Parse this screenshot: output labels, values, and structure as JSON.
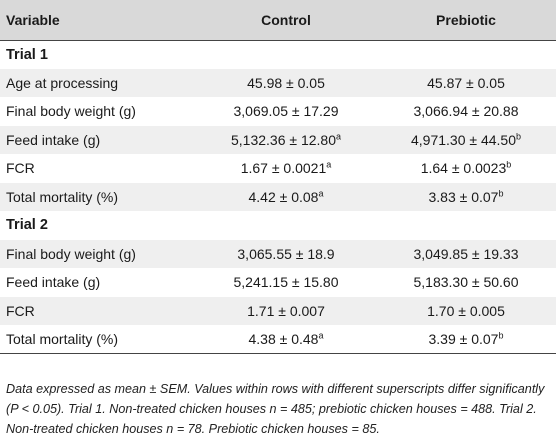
{
  "table": {
    "headers": [
      "Variable",
      "Control",
      "Prebiotic"
    ],
    "sections": [
      {
        "title": "Trial 1",
        "rows": [
          {
            "label": "Age at processing",
            "control": "45.98 ± 0.05",
            "control_sup": "",
            "prebiotic": "45.87 ± 0.05",
            "prebiotic_sup": ""
          },
          {
            "label": "Final body weight (g)",
            "control": "3,069.05 ± 17.29",
            "control_sup": "",
            "prebiotic": "3,066.94 ± 20.88",
            "prebiotic_sup": ""
          },
          {
            "label": "Feed intake (g)",
            "control": "5,132.36 ± 12.80",
            "control_sup": "a",
            "prebiotic": "4,971.30 ± 44.50",
            "prebiotic_sup": "b"
          },
          {
            "label": "FCR",
            "control": "1.67 ± 0.0021",
            "control_sup": "a",
            "prebiotic": "1.64 ± 0.0023",
            "prebiotic_sup": "b"
          },
          {
            "label": "Total mortality (%)",
            "control": "4.42 ± 0.08",
            "control_sup": "a",
            "prebiotic": "3.83 ± 0.07",
            "prebiotic_sup": "b"
          }
        ]
      },
      {
        "title": "Trial 2",
        "rows": [
          {
            "label": "Final body weight (g)",
            "control": "3,065.55 ± 18.9",
            "control_sup": "",
            "prebiotic": "3,049.85 ± 19.33",
            "prebiotic_sup": ""
          },
          {
            "label": "Feed intake (g)",
            "control": "5,241.15 ± 15.80",
            "control_sup": "",
            "prebiotic": "5,183.30 ± 50.60",
            "prebiotic_sup": ""
          },
          {
            "label": "FCR",
            "control": "1.71 ± 0.007",
            "control_sup": "",
            "prebiotic": "1.70 ± 0.005",
            "prebiotic_sup": ""
          },
          {
            "label": "Total mortality (%)",
            "control": "4.38 ± 0.48",
            "control_sup": "a",
            "prebiotic": "3.39 ± 0.07",
            "prebiotic_sup": "b"
          }
        ]
      }
    ]
  },
  "footnote": "Data expressed as mean ± SEM. Values within rows with different superscripts differ significantly (P < 0.05). Trial 1. Non-treated chicken houses n = 485; prebiotic chicken houses = 488. Trial 2. Non-treated chicken houses n = 78. Prebiotic chicken houses = 85."
}
